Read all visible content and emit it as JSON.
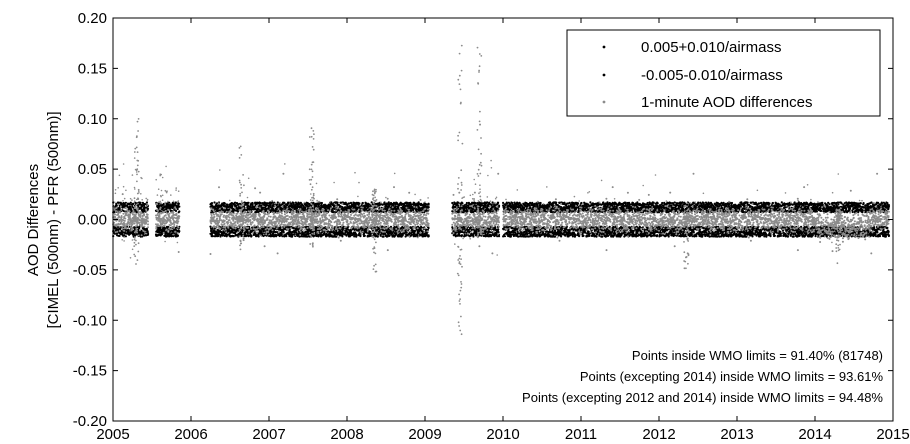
{
  "chart_data": {
    "type": "scatter",
    "title": "",
    "xlabel": "",
    "ylabel_lines": [
      "AOD Differences",
      "[CIMEL (500nm) - PFR (500nm)]"
    ],
    "xlim": [
      2005,
      2015
    ],
    "ylim": [
      -0.2,
      0.2
    ],
    "x_ticks": [
      2005,
      2006,
      2007,
      2008,
      2009,
      2010,
      2011,
      2012,
      2013,
      2014,
      2015
    ],
    "x_tick_labels": [
      "2005",
      "2006",
      "2007",
      "2008",
      "2009",
      "2010",
      "2011",
      "2012",
      "2013",
      "2014",
      "2015"
    ],
    "y_ticks": [
      0.2,
      0.15,
      0.1,
      0.05,
      0,
      -0.05,
      -0.1,
      -0.15,
      -0.2
    ],
    "y_tick_labels": [
      "0.20",
      "0.15",
      "0.10",
      "0.05",
      "0.00",
      "-0.05",
      "-0.10",
      "-0.15",
      "-0.20"
    ],
    "grid": false,
    "legend_position": "top-right",
    "series": [
      {
        "name": "0.005+0.010/airmass",
        "color": "#000000",
        "marker": "dot"
      },
      {
        "name": "-0.005-0.010/airmass",
        "color": "#000000",
        "marker": "dot"
      },
      {
        "name": "1-minute AOD differences",
        "color": "#8c8c8c",
        "marker": "dot"
      }
    ],
    "data_periods": [
      [
        2005.0,
        2005.45
      ],
      [
        2005.55,
        2005.85
      ],
      [
        2006.25,
        2009.05
      ],
      [
        2009.35,
        2009.95
      ],
      [
        2010.0,
        2014.95
      ]
    ],
    "limit_band": {
      "upper_approx": [
        0.007,
        0.017
      ],
      "lower_approx": [
        -0.017,
        -0.007
      ]
    },
    "spikes": [
      {
        "x": 2005.3,
        "min": -0.045,
        "max": 0.1
      },
      {
        "x": 2006.65,
        "min": -0.03,
        "max": 0.075
      },
      {
        "x": 2007.55,
        "min": -0.03,
        "max": 0.095
      },
      {
        "x": 2008.35,
        "min": -0.055,
        "max": 0.03
      },
      {
        "x": 2009.45,
        "min": -0.115,
        "max": 0.185
      },
      {
        "x": 2009.7,
        "min": -0.02,
        "max": 0.175
      },
      {
        "x": 2012.35,
        "min": -0.05,
        "max": 0.015
      },
      {
        "x": 2014.3,
        "min": -0.045,
        "max": 0.01
      }
    ],
    "annotations": [
      "Points inside WMO limits = 91.40% (81748)",
      "Points (excepting 2014) inside WMO limits = 93.61%",
      "Points (excepting 2012 and 2014) inside WMO limits = 94.48%"
    ]
  }
}
